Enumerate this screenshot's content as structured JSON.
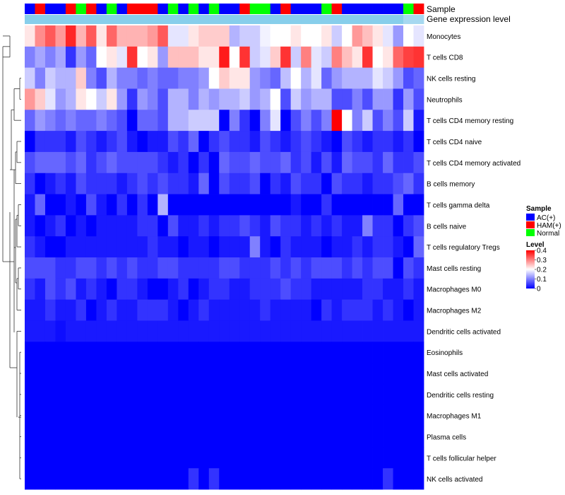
{
  "chart_data": {
    "type": "heatmap",
    "title": "",
    "annotations": [
      {
        "name": "Sample",
        "label": "Sample"
      },
      {
        "name": "Gene expression level",
        "label": "Gene expression level"
      }
    ],
    "row_labels": [
      "Monocytes",
      "T cells CD8",
      "NK cells resting",
      "Neutrophils",
      "T cells CD4 memory resting",
      "T cells CD4 naive",
      "T cells CD4 memory activated",
      "B cells memory",
      "T cells gamma delta",
      "B cells naive",
      "T cells regulatory  Tregs",
      "Mast cells resting",
      "Macrophages M0",
      "Macrophages M2",
      "Dendritic cells activated",
      "Eosinophils",
      "Mast cells activated",
      "Dendritic cells resting",
      "Macrophages M1",
      "Plasma cells",
      "T cells follicular helper",
      "NK cells activated"
    ],
    "samples": [
      "AC(+)",
      "HAM(+)",
      "AC(+)",
      "AC(+)",
      "HAM(+)",
      "Normal",
      "HAM(+)",
      "AC(+)",
      "Normal",
      "AC(+)",
      "HAM(+)",
      "HAM(+)",
      "HAM(+)",
      "AC(+)",
      "Normal",
      "AC(+)",
      "Normal",
      "AC(+)",
      "Normal",
      "AC(+)",
      "AC(+)",
      "HAM(+)",
      "Normal",
      "Normal",
      "AC(+)",
      "HAM(+)",
      "AC(+)",
      "AC(+)",
      "AC(+)",
      "Normal",
      "HAM(+)",
      "AC(+)",
      "AC(+)",
      "AC(+)",
      "AC(+)",
      "AC(+)",
      "AC(+)",
      "Normal",
      "HAM(+)"
    ],
    "gene_expression_level": [
      1,
      1,
      1,
      1,
      1,
      1,
      1,
      1,
      1,
      1,
      1,
      1,
      1,
      1,
      1,
      1,
      1,
      1,
      1,
      1,
      1,
      1,
      1,
      1,
      1,
      1,
      1,
      1,
      1,
      1,
      1,
      1,
      1,
      1,
      1,
      1,
      1,
      0,
      0
    ],
    "values": [
      [
        0.22,
        0.29,
        0.33,
        0.28,
        0.37,
        0.26,
        0.33,
        0.22,
        0.32,
        0.26,
        0.26,
        0.26,
        0.28,
        0.33,
        0.18,
        0.18,
        0.22,
        0.24,
        0.24,
        0.24,
        0.14,
        0.16,
        0.16,
        0.19,
        0.2,
        0.2,
        0.22,
        0.2,
        0.2,
        0.22,
        0.16,
        0.2,
        0.28,
        0.25,
        0.22,
        0.18,
        0.12,
        0.2,
        0.18
      ],
      [
        0.1,
        0.13,
        0.1,
        0.13,
        0.04,
        0.12,
        0.08,
        0.2,
        0.22,
        0.18,
        0.36,
        0.2,
        0.22,
        0.12,
        0.25,
        0.25,
        0.25,
        0.22,
        0.22,
        0.38,
        0.2,
        0.36,
        0.16,
        0.18,
        0.24,
        0.36,
        0.16,
        0.3,
        0.18,
        0.16,
        0.3,
        0.25,
        0.22,
        0.36,
        0.2,
        0.22,
        0.32,
        0.35,
        0.36
      ],
      [
        0.16,
        0.1,
        0.16,
        0.14,
        0.14,
        0.24,
        0.1,
        0.06,
        0.14,
        0.1,
        0.1,
        0.08,
        0.1,
        0.08,
        0.08,
        0.1,
        0.1,
        0.12,
        0.2,
        0.24,
        0.22,
        0.22,
        0.12,
        0.1,
        0.08,
        0.15,
        0.2,
        0.14,
        0.18,
        0.08,
        0.12,
        0.14,
        0.14,
        0.14,
        0.18,
        0.16,
        0.12,
        0.06,
        0.08
      ],
      [
        0.28,
        0.24,
        0.18,
        0.12,
        0.14,
        0.22,
        0.2,
        0.16,
        0.22,
        0.12,
        0.04,
        0.12,
        0.1,
        0.06,
        0.14,
        0.14,
        0.1,
        0.14,
        0.12,
        0.14,
        0.14,
        0.16,
        0.12,
        0.14,
        0.2,
        0.06,
        0.16,
        0.12,
        0.14,
        0.14,
        0.06,
        0.06,
        0.1,
        0.06,
        0.12,
        0.12,
        0.04,
        0.12,
        0.06
      ],
      [
        0.08,
        0.12,
        0.1,
        0.08,
        0.1,
        0.08,
        0.08,
        0.1,
        0.08,
        0.06,
        0.0,
        0.08,
        0.08,
        0.06,
        0.14,
        0.14,
        0.16,
        0.16,
        0.16,
        0.0,
        0.1,
        0.04,
        0.0,
        0.1,
        0.18,
        0.0,
        0.06,
        0.1,
        0.06,
        0.1,
        0.4,
        0.2,
        0.1,
        0.16,
        0.06,
        0.1,
        0.06,
        0.16,
        0.02
      ],
      [
        0.0,
        0.04,
        0.04,
        0.04,
        0.02,
        0.06,
        0.04,
        0.02,
        0.04,
        0.06,
        0.02,
        0.0,
        0.02,
        0.02,
        0.06,
        0.04,
        0.08,
        0.0,
        0.04,
        0.06,
        0.04,
        0.04,
        0.02,
        0.06,
        0.04,
        0.02,
        0.04,
        0.06,
        0.04,
        0.02,
        0.0,
        0.06,
        0.04,
        0.02,
        0.04,
        0.04,
        0.02,
        0.04,
        0.0
      ],
      [
        0.06,
        0.08,
        0.08,
        0.08,
        0.06,
        0.08,
        0.04,
        0.06,
        0.08,
        0.06,
        0.06,
        0.06,
        0.06,
        0.04,
        0.02,
        0.04,
        0.0,
        0.04,
        0.0,
        0.08,
        0.06,
        0.06,
        0.08,
        0.06,
        0.06,
        0.08,
        0.04,
        0.06,
        0.02,
        0.06,
        0.02,
        0.08,
        0.06,
        0.06,
        0.04,
        0.08,
        0.04,
        0.04,
        0.06
      ],
      [
        0.04,
        0.0,
        0.02,
        0.04,
        0.02,
        0.06,
        0.04,
        0.04,
        0.04,
        0.02,
        0.04,
        0.06,
        0.04,
        0.06,
        0.04,
        0.04,
        0.02,
        0.08,
        0.0,
        0.06,
        0.04,
        0.04,
        0.06,
        0.0,
        0.04,
        0.02,
        0.06,
        0.04,
        0.04,
        0.0,
        0.06,
        0.04,
        0.04,
        0.02,
        0.04,
        0.04,
        0.06,
        0.08,
        0.04
      ],
      [
        0.02,
        0.08,
        0.0,
        0.0,
        0.02,
        0.0,
        0.06,
        0.02,
        0.0,
        0.04,
        0.0,
        0.04,
        0.0,
        0.14,
        0.0,
        0.0,
        0.0,
        0.0,
        0.0,
        0.0,
        0.0,
        0.0,
        0.0,
        0.0,
        0.0,
        0.0,
        0.02,
        0.0,
        0.0,
        0.04,
        0.0,
        0.0,
        0.0,
        0.0,
        0.0,
        0.0,
        0.08,
        0.0,
        0.0
      ],
      [
        0.02,
        0.0,
        0.02,
        0.04,
        0.0,
        0.02,
        0.0,
        0.02,
        0.02,
        0.02,
        0.02,
        0.04,
        0.04,
        0.0,
        0.06,
        0.02,
        0.02,
        0.04,
        0.02,
        0.04,
        0.04,
        0.06,
        0.04,
        0.02,
        0.06,
        0.04,
        0.04,
        0.02,
        0.04,
        0.02,
        0.04,
        0.02,
        0.02,
        0.1,
        0.04,
        0.04,
        0.0,
        0.04,
        0.06
      ],
      [
        0.04,
        0.02,
        0.0,
        0.0,
        0.02,
        0.02,
        0.02,
        0.02,
        0.02,
        0.02,
        0.02,
        0.02,
        0.04,
        0.02,
        0.02,
        0.0,
        0.02,
        0.02,
        0.0,
        0.02,
        0.02,
        0.02,
        0.1,
        0.02,
        0.0,
        0.04,
        0.02,
        0.02,
        0.02,
        0.0,
        0.02,
        0.02,
        0.04,
        0.02,
        0.04,
        0.04,
        0.02,
        0.0,
        0.08
      ],
      [
        0.06,
        0.06,
        0.06,
        0.04,
        0.04,
        0.06,
        0.06,
        0.04,
        0.06,
        0.04,
        0.06,
        0.04,
        0.04,
        0.06,
        0.06,
        0.04,
        0.04,
        0.04,
        0.04,
        0.06,
        0.06,
        0.04,
        0.04,
        0.04,
        0.06,
        0.04,
        0.06,
        0.04,
        0.06,
        0.06,
        0.06,
        0.04,
        0.06,
        0.04,
        0.06,
        0.06,
        0.0,
        0.06,
        0.04
      ],
      [
        0.04,
        0.02,
        0.06,
        0.04,
        0.06,
        0.02,
        0.04,
        0.02,
        0.0,
        0.04,
        0.04,
        0.02,
        0.0,
        0.0,
        0.02,
        0.04,
        0.0,
        0.02,
        0.04,
        0.04,
        0.02,
        0.02,
        0.04,
        0.04,
        0.04,
        0.06,
        0.04,
        0.04,
        0.02,
        0.02,
        0.02,
        0.02,
        0.02,
        0.04,
        0.04,
        0.02,
        0.02,
        0.04,
        0.02
      ],
      [
        0.02,
        0.02,
        0.04,
        0.02,
        0.02,
        0.04,
        0.0,
        0.02,
        0.04,
        0.02,
        0.02,
        0.04,
        0.04,
        0.04,
        0.02,
        0.0,
        0.02,
        0.04,
        0.02,
        0.02,
        0.02,
        0.02,
        0.02,
        0.04,
        0.02,
        0.02,
        0.02,
        0.02,
        0.0,
        0.04,
        0.02,
        0.04,
        0.04,
        0.04,
        0.02,
        0.04,
        0.02,
        0.0,
        0.02
      ],
      [
        0.02,
        0.02,
        0.02,
        0.01,
        0.02,
        0.02,
        0.02,
        0.02,
        0.02,
        0.02,
        0.02,
        0.02,
        0.02,
        0.02,
        0.02,
        0.02,
        0.02,
        0.02,
        0.02,
        0.02,
        0.02,
        0.02,
        0.02,
        0.02,
        0.02,
        0.02,
        0.02,
        0.02,
        0.02,
        0.02,
        0.02,
        0.02,
        0.02,
        0.02,
        0.02,
        0.02,
        0.02,
        0.02,
        0.02
      ],
      [
        0,
        0,
        0,
        0,
        0,
        0,
        0,
        0,
        0,
        0,
        0,
        0,
        0,
        0,
        0,
        0,
        0,
        0,
        0,
        0,
        0,
        0,
        0,
        0,
        0,
        0,
        0,
        0,
        0,
        0,
        0,
        0,
        0,
        0,
        0,
        0,
        0,
        0,
        0
      ],
      [
        0,
        0,
        0,
        0,
        0,
        0,
        0,
        0,
        0,
        0,
        0,
        0,
        0,
        0,
        0,
        0,
        0,
        0,
        0,
        0,
        0,
        0,
        0,
        0,
        0,
        0,
        0,
        0,
        0,
        0,
        0,
        0,
        0,
        0,
        0,
        0,
        0,
        0,
        0
      ],
      [
        0,
        0,
        0,
        0,
        0,
        0,
        0,
        0,
        0,
        0,
        0,
        0,
        0,
        0,
        0,
        0,
        0,
        0,
        0,
        0,
        0,
        0,
        0,
        0,
        0,
        0,
        0,
        0,
        0,
        0,
        0,
        0,
        0,
        0,
        0,
        0,
        0,
        0,
        0
      ],
      [
        0,
        0,
        0,
        0,
        0,
        0,
        0,
        0,
        0,
        0,
        0,
        0,
        0,
        0,
        0,
        0,
        0,
        0,
        0,
        0,
        0,
        0,
        0,
        0,
        0,
        0,
        0,
        0,
        0,
        0,
        0,
        0,
        0,
        0,
        0,
        0,
        0,
        0,
        0
      ],
      [
        0,
        0,
        0,
        0,
        0,
        0,
        0,
        0,
        0,
        0,
        0,
        0,
        0,
        0,
        0,
        0,
        0,
        0,
        0,
        0,
        0,
        0,
        0,
        0,
        0,
        0,
        0,
        0,
        0,
        0,
        0,
        0,
        0,
        0,
        0,
        0,
        0,
        0,
        0
      ],
      [
        0,
        0,
        0,
        0,
        0,
        0,
        0,
        0,
        0,
        0,
        0,
        0,
        0,
        0,
        0,
        0,
        0,
        0,
        0,
        0,
        0,
        0,
        0,
        0,
        0,
        0,
        0,
        0,
        0,
        0,
        0,
        0,
        0,
        0,
        0,
        0,
        0,
        0,
        0
      ],
      [
        0,
        0,
        0,
        0,
        0,
        0,
        0,
        0,
        0,
        0,
        0,
        0,
        0,
        0,
        0,
        0,
        0.04,
        0,
        0.04,
        0,
        0,
        0,
        0,
        0,
        0,
        0,
        0,
        0,
        0,
        0,
        0,
        0,
        0,
        0,
        0,
        0.04,
        0,
        0,
        0
      ]
    ],
    "color_scale": {
      "min": 0,
      "mid": 0.2,
      "max": 0.4,
      "low": "#0000ff",
      "midColor": "#ffffff",
      "high": "#ff0000"
    },
    "legend": {
      "sample": {
        "title": "Sample",
        "items": [
          {
            "label": "AC(+)",
            "color": "#0000ff"
          },
          {
            "label": "HAM(+)",
            "color": "#ff0000"
          },
          {
            "label": "Normal",
            "color": "#00ff00"
          }
        ]
      },
      "level": {
        "title": "Level",
        "ticks": [
          "0.4",
          "0.3",
          "0.2",
          "0.1",
          "0"
        ],
        "tick_values": [
          0.4,
          0.3,
          0.2,
          0.1,
          0
        ]
      }
    },
    "gene_expression_colors": [
      "#a6d8f0",
      "#87ceeb"
    ],
    "sample_colors": {
      "AC(+)": "#0000ff",
      "HAM(+)": "#ff0000",
      "Normal": "#00ff00"
    },
    "legend_position": "right"
  }
}
